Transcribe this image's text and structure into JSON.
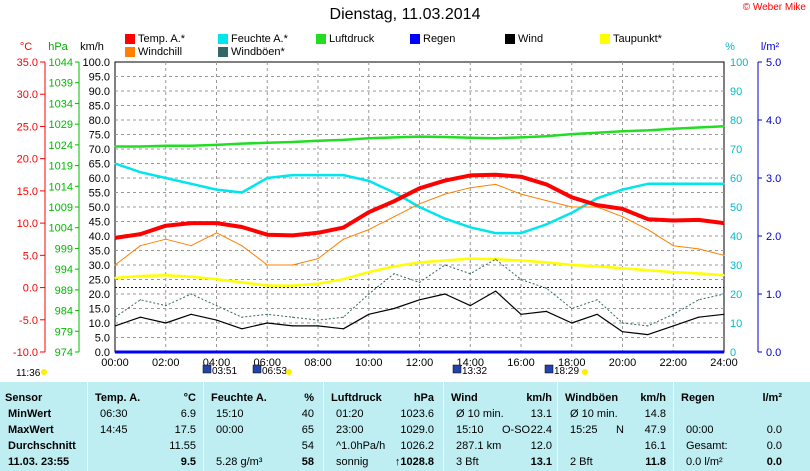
{
  "title": "Dienstag, 11.03.2014",
  "copyright": "© Weber Mike",
  "colors": {
    "temp": "#ff0000",
    "feuchte": "#00e5ee",
    "luftdruck": "#22dd22",
    "regen": "#0000ff",
    "wind": "#000000",
    "taupunkt": "#ffff00",
    "windchill": "#ff8000",
    "windboeen": "#336666",
    "table_bg": "#bfeef2"
  },
  "legend": [
    {
      "label": "Temp. A.*",
      "color": "#ff0000"
    },
    {
      "label": "Feuchte A.*",
      "color": "#00e5ee"
    },
    {
      "label": "Luftdruck",
      "color": "#22dd22"
    },
    {
      "label": "Regen",
      "color": "#0000ff"
    },
    {
      "label": "Wind",
      "color": "#000000"
    },
    {
      "label": "Taupunkt*",
      "color": "#ffff00"
    },
    {
      "label": "Windchill",
      "color": "#ff8000"
    },
    {
      "label": "Windböen*",
      "color": "#336666"
    }
  ],
  "axis_units": {
    "celsius": "°C",
    "hpa": "hPa",
    "kmh": "km/h",
    "percent": "%",
    "rain": "l/m²"
  },
  "axis_ticks": {
    "celsius": [
      "35.0",
      "30.0",
      "25.0",
      "20.0",
      "15.0",
      "10.0",
      "5.0",
      "0.0",
      "-5.0",
      "-10.0"
    ],
    "hpa": [
      "1044",
      "1039",
      "1034",
      "1029",
      "1024",
      "1019",
      "1014",
      "1009",
      "1004",
      "999",
      "994",
      "989",
      "984",
      "979",
      "974"
    ],
    "kmh": [
      "100.0",
      "95.0",
      "90.0",
      "85.0",
      "80.0",
      "75.0",
      "70.0",
      "65.0",
      "60.0",
      "55.0",
      "50.0",
      "45.0",
      "40.0",
      "35.0",
      "30.0",
      "25.0",
      "20.0",
      "15.0",
      "10.0",
      "5.0",
      "0.0"
    ],
    "percent": [
      "100",
      "90",
      "80",
      "70",
      "60",
      "50",
      "40",
      "30",
      "20",
      "10",
      "0"
    ],
    "rain": [
      "5.0",
      "4.0",
      "3.0",
      "2.0",
      "1.0",
      "0.0"
    ],
    "time": [
      "00:00",
      "02:00",
      "04:00",
      "06:00",
      "08:00",
      "10:00",
      "12:00",
      "14:00",
      "16:00",
      "18:00",
      "20:00",
      "22:00",
      "24:00"
    ]
  },
  "sun_marks": [
    {
      "label": "11:36",
      "kind": "moon-set"
    },
    {
      "label": "03:51",
      "kind": "moon-rise"
    },
    {
      "label": "06:53",
      "kind": "sunrise"
    },
    {
      "label": "13:32",
      "kind": "moon"
    },
    {
      "label": "18:29",
      "kind": "sunset"
    }
  ],
  "chart_data": {
    "type": "line",
    "x_unit": "hours",
    "xlim": [
      0,
      24
    ],
    "series": [
      {
        "name": "Temp. A.*",
        "axis": "celsius",
        "x": [
          0,
          1,
          2,
          3,
          4,
          5,
          6,
          7,
          8,
          9,
          10,
          11,
          12,
          13,
          14,
          15,
          16,
          17,
          18,
          19,
          20,
          21,
          22,
          23,
          24
        ],
        "y": [
          7.7,
          8.3,
          9.6,
          10.0,
          10.0,
          9.4,
          8.2,
          8.1,
          8.5,
          9.3,
          11.7,
          13.4,
          15.4,
          16.6,
          17.4,
          17.5,
          17.2,
          16.0,
          14.0,
          12.8,
          12.2,
          10.6,
          10.4,
          10.5,
          10.0
        ]
      },
      {
        "name": "Windchill",
        "axis": "celsius",
        "x": [
          0,
          1,
          2,
          3,
          4,
          5,
          6,
          7,
          8,
          9,
          10,
          11,
          12,
          13,
          14,
          15,
          16,
          17,
          18,
          19,
          20,
          21,
          22,
          23,
          24
        ],
        "y": [
          3.5,
          6.5,
          7.5,
          6.5,
          8.5,
          6.5,
          3.5,
          3.5,
          4.5,
          7.5,
          9.0,
          11.0,
          13.0,
          14.5,
          15.5,
          16.0,
          14.5,
          13.5,
          12.5,
          12.5,
          11.0,
          9.0,
          6.5,
          6.0,
          5.0
        ]
      },
      {
        "name": "Feuchte A.*",
        "axis": "percent",
        "x": [
          0,
          1,
          2,
          3,
          4,
          5,
          6,
          7,
          8,
          9,
          10,
          11,
          12,
          13,
          14,
          15,
          16,
          17,
          18,
          19,
          20,
          21,
          22,
          23,
          24
        ],
        "y": [
          65,
          62,
          60,
          58,
          56,
          55,
          60,
          61,
          61,
          61,
          59,
          55,
          50,
          46,
          43,
          41,
          41,
          44,
          48,
          53,
          56,
          58,
          58,
          58,
          58
        ]
      },
      {
        "name": "Luftdruck",
        "axis": "hpa",
        "x": [
          0,
          1,
          2,
          3,
          4,
          5,
          6,
          7,
          8,
          9,
          10,
          11,
          12,
          13,
          14,
          15,
          16,
          17,
          18,
          19,
          20,
          21,
          22,
          23,
          24
        ],
        "y": [
          1023.6,
          1023.6,
          1023.8,
          1023.8,
          1024.0,
          1024.3,
          1024.5,
          1024.7,
          1025.0,
          1025.2,
          1025.6,
          1025.8,
          1026.0,
          1025.9,
          1025.7,
          1025.6,
          1025.8,
          1026.1,
          1026.6,
          1026.9,
          1027.3,
          1027.5,
          1027.9,
          1028.2,
          1028.5
        ]
      },
      {
        "name": "Taupunkt*",
        "axis": "celsius",
        "x": [
          0,
          1,
          2,
          3,
          4,
          5,
          6,
          7,
          8,
          9,
          10,
          11,
          12,
          13,
          14,
          15,
          16,
          17,
          18,
          19,
          20,
          21,
          22,
          23,
          24
        ],
        "y": [
          1.5,
          1.8,
          1.9,
          1.7,
          1.3,
          0.8,
          0.3,
          0.3,
          0.6,
          1.3,
          2.4,
          3.3,
          3.9,
          4.2,
          4.5,
          4.4,
          4.2,
          3.9,
          3.5,
          3.3,
          3.0,
          2.7,
          2.4,
          2.2,
          1.9
        ]
      },
      {
        "name": "Wind",
        "axis": "kmh",
        "x": [
          0,
          1,
          2,
          3,
          4,
          5,
          6,
          7,
          8,
          9,
          10,
          11,
          12,
          13,
          14,
          15,
          16,
          17,
          18,
          19,
          20,
          21,
          22,
          23,
          24
        ],
        "y": [
          9,
          12,
          10,
          13,
          11,
          8,
          10,
          9,
          9,
          8,
          13,
          15,
          18,
          20,
          16,
          21,
          13,
          14,
          10,
          13,
          7,
          6,
          9,
          12,
          13
        ]
      },
      {
        "name": "Windböen*",
        "axis": "kmh",
        "x": [
          0,
          1,
          2,
          3,
          4,
          5,
          6,
          7,
          8,
          9,
          10,
          11,
          12,
          13,
          14,
          15,
          16,
          17,
          18,
          19,
          20,
          21,
          22,
          23,
          24
        ],
        "y": [
          12,
          18,
          16,
          20,
          16,
          12,
          13,
          12,
          11,
          12,
          20,
          27,
          24,
          30,
          27,
          32,
          25,
          22,
          15,
          18,
          10,
          9,
          13,
          18,
          20
        ]
      },
      {
        "name": "Regen",
        "axis": "rain",
        "x": [
          0,
          24
        ],
        "y": [
          0,
          0
        ]
      }
    ],
    "reference_line": {
      "axis": "celsius",
      "value": 0.0
    }
  },
  "table": {
    "headers": [
      [
        "Sensor",
        ""
      ],
      [
        "Temp. A.",
        "°C"
      ],
      [
        "Feuchte A.",
        "%"
      ],
      [
        "Luftdruck",
        "hPa"
      ],
      [
        "Wind",
        "km/h"
      ],
      [
        "Windböen",
        "km/h"
      ],
      [
        "Regen",
        "l/m²"
      ]
    ],
    "rows": [
      {
        "label": "MinWert",
        "cells": [
          [
            "06:30",
            "6.9"
          ],
          [
            "15:10",
            "40"
          ],
          [
            "01:20",
            "1023.6"
          ],
          [
            "Ø 10 min.",
            "",
            "13.1"
          ],
          [
            "Ø 10 min.",
            "",
            "14.8"
          ],
          [
            "",
            ""
          ]
        ]
      },
      {
        "label": "MaxWert",
        "cells": [
          [
            "14:45",
            "17.5"
          ],
          [
            "00:00",
            "65"
          ],
          [
            "23:00",
            "1029.0"
          ],
          [
            "15:10",
            "O-SO",
            "22.4"
          ],
          [
            "15:25",
            "N",
            "47.9"
          ],
          [
            "00:00",
            "0.0"
          ]
        ]
      },
      {
        "label": "Durchschnitt",
        "cells": [
          [
            "",
            "11.55"
          ],
          [
            "",
            "54"
          ],
          [
            "^1.0hPa/h",
            "1026.2"
          ],
          [
            "287.1 km",
            "",
            "12.0"
          ],
          [
            "",
            "",
            "16.1"
          ],
          [
            "Gesamt:",
            "0.0"
          ]
        ]
      },
      {
        "label": "11.03. 23:55",
        "cells": [
          [
            "",
            "9.5"
          ],
          [
            "5.28 g/m³",
            "58"
          ],
          [
            "sonnig",
            "↑1028.8"
          ],
          [
            "3 Bft",
            "",
            "13.1"
          ],
          [
            "2 Bft",
            "",
            "11.8"
          ],
          [
            "0.0 l/m²",
            "0.0"
          ]
        ]
      }
    ]
  }
}
